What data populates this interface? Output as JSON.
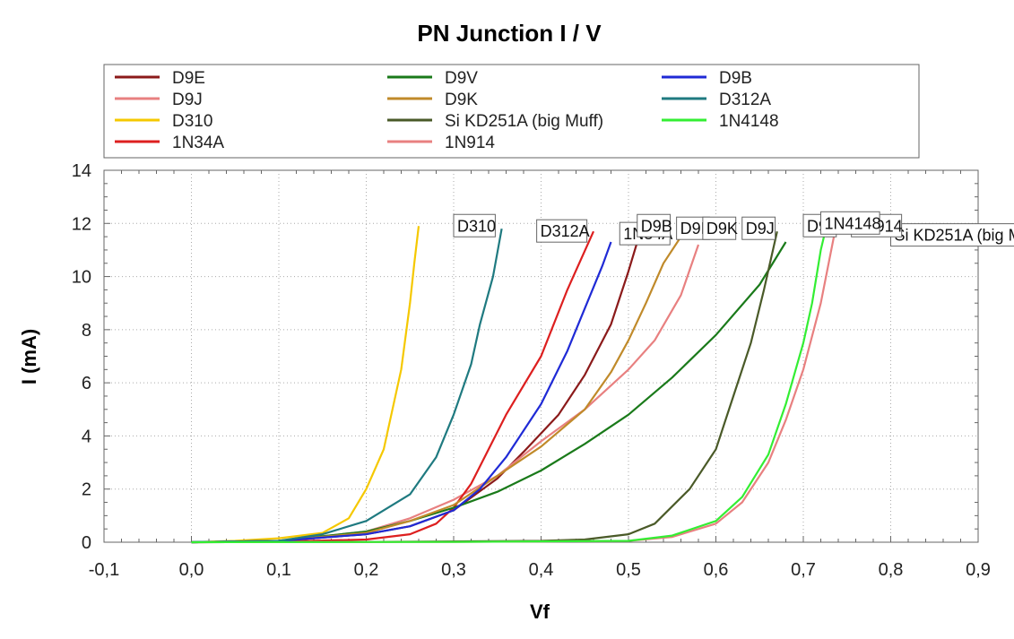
{
  "chart_data": {
    "type": "line",
    "title": "PN Junction I / V",
    "xlabel": "Vf",
    "ylabel": "I (mA)",
    "xlim": [
      -0.1,
      0.9
    ],
    "ylim": [
      0,
      14
    ],
    "x_ticks": [
      "-0,1",
      "0,0",
      "0,1",
      "0,2",
      "0,3",
      "0,4",
      "0,5",
      "0,6",
      "0,7",
      "0,8",
      "0,9"
    ],
    "y_ticks": [
      "0",
      "2",
      "4",
      "6",
      "8",
      "10",
      "12",
      "14"
    ],
    "grid": true,
    "legend_position": "top",
    "series": [
      {
        "name": "D9E",
        "color": "#8b1a1a",
        "label_at": [
          0.555,
          11.8
        ],
        "points": [
          [
            0,
            0
          ],
          [
            0.1,
            0.05
          ],
          [
            0.2,
            0.3
          ],
          [
            0.25,
            0.6
          ],
          [
            0.3,
            1.2
          ],
          [
            0.35,
            2.4
          ],
          [
            0.38,
            3.4
          ],
          [
            0.42,
            4.8
          ],
          [
            0.45,
            6.3
          ],
          [
            0.48,
            8.2
          ],
          [
            0.5,
            10.2
          ],
          [
            0.51,
            11.3
          ]
        ]
      },
      {
        "name": "D9J",
        "color": "#e88080",
        "label_at": [
          0.63,
          11.8
        ],
        "points": [
          [
            0,
            0
          ],
          [
            0.1,
            0.05
          ],
          [
            0.2,
            0.4
          ],
          [
            0.25,
            0.9
          ],
          [
            0.3,
            1.6
          ],
          [
            0.35,
            2.5
          ],
          [
            0.4,
            3.8
          ],
          [
            0.45,
            5.0
          ],
          [
            0.5,
            6.5
          ],
          [
            0.53,
            7.6
          ],
          [
            0.56,
            9.3
          ],
          [
            0.58,
            11.2
          ]
        ]
      },
      {
        "name": "D310",
        "color": "#f5c800",
        "label_at": [
          0.3,
          11.9
        ],
        "points": [
          [
            0,
            0
          ],
          [
            0.05,
            0.05
          ],
          [
            0.1,
            0.15
          ],
          [
            0.15,
            0.35
          ],
          [
            0.18,
            0.9
          ],
          [
            0.2,
            2.0
          ],
          [
            0.22,
            3.5
          ],
          [
            0.24,
            6.5
          ],
          [
            0.25,
            9.0
          ],
          [
            0.255,
            10.5
          ],
          [
            0.26,
            11.9
          ]
        ]
      },
      {
        "name": "1N34A",
        "color": "#dd1f1f",
        "label_at": [
          0.49,
          11.6
        ],
        "points": [
          [
            0,
            0
          ],
          [
            0.1,
            0.02
          ],
          [
            0.2,
            0.1
          ],
          [
            0.25,
            0.3
          ],
          [
            0.28,
            0.7
          ],
          [
            0.3,
            1.3
          ],
          [
            0.32,
            2.2
          ],
          [
            0.34,
            3.5
          ],
          [
            0.36,
            4.8
          ],
          [
            0.4,
            7.0
          ],
          [
            0.43,
            9.5
          ],
          [
            0.46,
            11.7
          ]
        ]
      },
      {
        "name": "D9V",
        "color": "#1a7a1a",
        "label_at": [
          0.7,
          11.9
        ],
        "points": [
          [
            0,
            0
          ],
          [
            0.1,
            0.05
          ],
          [
            0.2,
            0.4
          ],
          [
            0.25,
            0.8
          ],
          [
            0.3,
            1.3
          ],
          [
            0.35,
            1.9
          ],
          [
            0.4,
            2.7
          ],
          [
            0.45,
            3.7
          ],
          [
            0.5,
            4.8
          ],
          [
            0.55,
            6.2
          ],
          [
            0.6,
            7.8
          ],
          [
            0.65,
            9.7
          ],
          [
            0.68,
            11.3
          ]
        ]
      },
      {
        "name": "D9K",
        "color": "#c08a2a",
        "label_at": [
          0.585,
          11.8
        ],
        "points": [
          [
            0,
            0
          ],
          [
            0.1,
            0.05
          ],
          [
            0.2,
            0.35
          ],
          [
            0.25,
            0.8
          ],
          [
            0.3,
            1.4
          ],
          [
            0.35,
            2.5
          ],
          [
            0.4,
            3.6
          ],
          [
            0.45,
            5.0
          ],
          [
            0.48,
            6.4
          ],
          [
            0.5,
            7.6
          ],
          [
            0.52,
            9.0
          ],
          [
            0.54,
            10.5
          ],
          [
            0.56,
            11.5
          ]
        ]
      },
      {
        "name": "Si KD251A (big Muff)",
        "color": "#4a5a28",
        "label_at": [
          0.8,
          11.55
        ],
        "points": [
          [
            0,
            0
          ],
          [
            0.2,
            0.01
          ],
          [
            0.4,
            0.05
          ],
          [
            0.45,
            0.1
          ],
          [
            0.5,
            0.3
          ],
          [
            0.53,
            0.7
          ],
          [
            0.57,
            2.0
          ],
          [
            0.6,
            3.5
          ],
          [
            0.62,
            5.5
          ],
          [
            0.64,
            7.5
          ],
          [
            0.655,
            9.5
          ],
          [
            0.67,
            11.7
          ]
        ]
      },
      {
        "name": "1N914",
        "color": "#e88080",
        "label_at": [
          0.755,
          11.9
        ],
        "points": [
          [
            0,
            0
          ],
          [
            0.3,
            0.01
          ],
          [
            0.5,
            0.05
          ],
          [
            0.55,
            0.2
          ],
          [
            0.6,
            0.7
          ],
          [
            0.63,
            1.5
          ],
          [
            0.66,
            3.0
          ],
          [
            0.68,
            4.6
          ],
          [
            0.7,
            6.5
          ],
          [
            0.72,
            9.0
          ],
          [
            0.735,
            11.5
          ]
        ]
      },
      {
        "name": "D9B",
        "color": "#1f2ad6",
        "label_at": [
          0.51,
          11.9
        ],
        "points": [
          [
            0,
            0
          ],
          [
            0.1,
            0.05
          ],
          [
            0.2,
            0.3
          ],
          [
            0.25,
            0.6
          ],
          [
            0.3,
            1.2
          ],
          [
            0.33,
            2.0
          ],
          [
            0.36,
            3.2
          ],
          [
            0.4,
            5.2
          ],
          [
            0.43,
            7.2
          ],
          [
            0.45,
            8.8
          ],
          [
            0.47,
            10.4
          ],
          [
            0.48,
            11.3
          ]
        ]
      },
      {
        "name": "D312A",
        "color": "#1f7a80",
        "label_at": [
          0.395,
          11.7
        ],
        "points": [
          [
            0,
            0
          ],
          [
            0.1,
            0.05
          ],
          [
            0.15,
            0.3
          ],
          [
            0.2,
            0.8
          ],
          [
            0.25,
            1.8
          ],
          [
            0.28,
            3.2
          ],
          [
            0.3,
            4.8
          ],
          [
            0.32,
            6.7
          ],
          [
            0.33,
            8.2
          ],
          [
            0.345,
            10.0
          ],
          [
            0.355,
            11.8
          ]
        ]
      },
      {
        "name": "1N4148",
        "color": "#33ee33",
        "label_at": [
          0.72,
          12.0
        ],
        "points": [
          [
            0,
            0
          ],
          [
            0.3,
            0.01
          ],
          [
            0.5,
            0.05
          ],
          [
            0.55,
            0.25
          ],
          [
            0.6,
            0.8
          ],
          [
            0.63,
            1.7
          ],
          [
            0.66,
            3.3
          ],
          [
            0.68,
            5.2
          ],
          [
            0.7,
            7.5
          ],
          [
            0.71,
            9.0
          ],
          [
            0.72,
            11.0
          ],
          [
            0.725,
            11.7
          ]
        ]
      }
    ]
  }
}
